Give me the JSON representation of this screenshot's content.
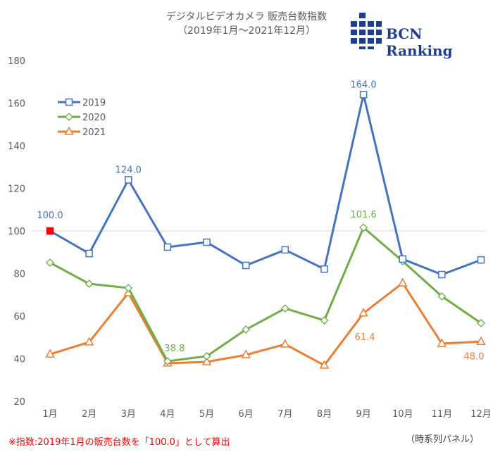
{
  "header": {
    "title_line1": "デジタルビデオカメラ 販売台数指数",
    "title_line2": "（2019年1月〜2021年12月）",
    "logo_text": "BCN Ranking"
  },
  "footer": {
    "note": "※指数:2019年1月の販売台数を「100.0」として算出",
    "panel_label": "（時系列パネル）"
  },
  "colors": {
    "2019": "#4472c4",
    "2020": "#70ad47",
    "2021": "#ed7d31",
    "baseline_marker": "#ff0000"
  },
  "chart_data": {
    "type": "line",
    "title": "デジタルビデオカメラ 販売台数指数",
    "categories": [
      "1月",
      "2月",
      "3月",
      "4月",
      "5月",
      "6月",
      "7月",
      "8月",
      "9月",
      "10月",
      "11月",
      "12月"
    ],
    "ylim": [
      20,
      180
    ],
    "yticks": [
      20,
      40,
      60,
      80,
      100,
      120,
      140,
      160,
      180
    ],
    "grid": false,
    "reference_line": 100,
    "legend": "top-left",
    "series": [
      {
        "name": "2019",
        "values": [
          100.0,
          89.4,
          124.0,
          92.4,
          94.7,
          83.8,
          91.1,
          82.1,
          164.0,
          86.8,
          79.5,
          86.4
        ],
        "marker": "square",
        "labels": [
          [
            0,
            "100.0"
          ],
          [
            2,
            "124.0"
          ],
          [
            8,
            "164.0"
          ]
        ]
      },
      {
        "name": "2020",
        "values": [
          85.1,
          75.2,
          73.2,
          38.8,
          41.2,
          53.7,
          63.6,
          58.0,
          101.6,
          85.8,
          69.3,
          56.7
        ],
        "marker": "diamond",
        "labels": [
          [
            3,
            "38.8"
          ],
          [
            8,
            "101.6"
          ]
        ]
      },
      {
        "name": "2021",
        "values": [
          42.1,
          47.8,
          70.9,
          37.9,
          38.5,
          41.8,
          46.8,
          36.9,
          61.4,
          75.5,
          47.1,
          48.0
        ],
        "marker": "triangle",
        "labels": [
          [
            8,
            "61.4"
          ],
          [
            11,
            "48.0"
          ]
        ]
      }
    ]
  }
}
